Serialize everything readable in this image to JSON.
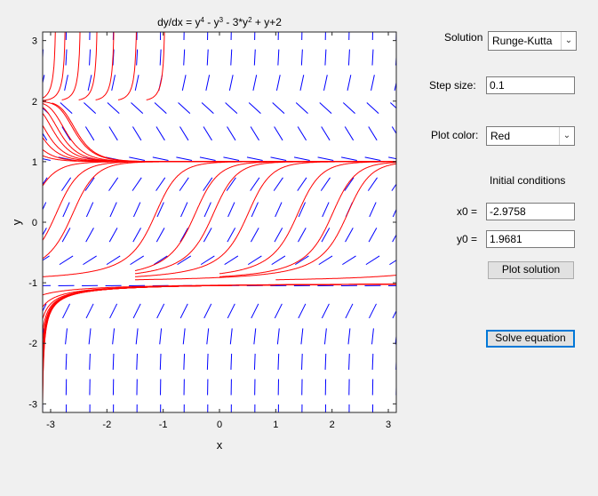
{
  "plot": {
    "title_html": "dy/dx = y<tspan baseline-shift=\"super\" font-size=\"8\">4</tspan> - y<tspan baseline-shift=\"super\" font-size=\"8\">3</tspan> - 3*y<tspan baseline-shift=\"super\" font-size=\"8\">2</tspan> + y+2",
    "xlabel": "x",
    "ylabel": "y",
    "xlim": [
      -3.14159,
      3.14159
    ],
    "ylim": [
      -3.14159,
      3.14159
    ],
    "xticks": [
      -3,
      -2,
      -1,
      0,
      1,
      2,
      3
    ],
    "yticks": [
      -3,
      -2,
      -1,
      0,
      1,
      2,
      3
    ],
    "field_color": "#0000ff",
    "curve_color": "#ff0000"
  },
  "controls": {
    "solution_label": "Solution",
    "solution_method": "Runge-Kutta",
    "step_size_label": "Step size:",
    "step_size_value": "0.1",
    "plot_color_label": "Plot color:",
    "plot_color_value": "Red",
    "initial_conditions_label": "Initial conditions",
    "x0_label": "x0 =",
    "x0_value": "-2.9758",
    "y0_label": "y0 =",
    "y0_value": "1.9681",
    "plot_solution_button": "Plot solution",
    "solve_equation_button": "Solve equation"
  }
}
